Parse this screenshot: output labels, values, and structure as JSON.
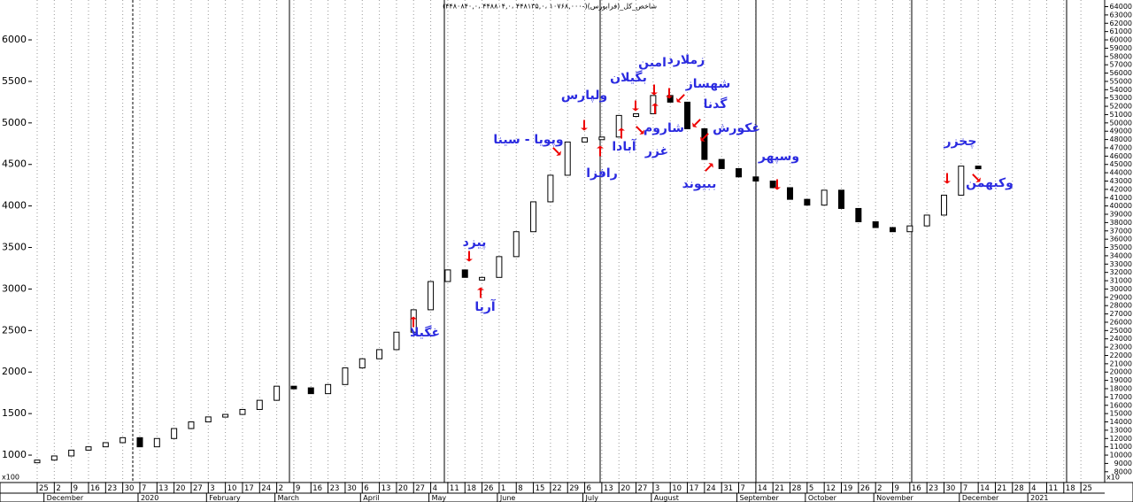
{
  "chart_data": {
    "type": "line",
    "title": "شاخص_کل_(فرابورس)(-۱۰۷۶۸,۰۰۰ ،۴۴۸۱۳۵,۰ ،۴۴۸۸۰۴,۰ ،۴۴۸۰۸۴۰,۰)",
    "ylabel": "x100",
    "y2label": "x10",
    "categories": [
      "25",
      "2",
      "9",
      "16",
      "23",
      "30",
      "7",
      "13",
      "20",
      "27",
      "3",
      "10",
      "17",
      "24",
      "2",
      "9",
      "16",
      "23",
      "30",
      "6",
      "13",
      "20",
      "27",
      "4",
      "11",
      "18",
      "26",
      "1",
      "8",
      "15",
      "22",
      "29",
      "6",
      "13",
      "20",
      "27",
      "3",
      "10",
      "17",
      "24",
      "31",
      "7",
      "14",
      "21",
      "28",
      "5",
      "12",
      "19",
      "26",
      "2",
      "9",
      "16",
      "23",
      "30",
      "7",
      "14",
      "21",
      "28",
      "4",
      "11",
      "18",
      "25"
    ],
    "month_labels": [
      "December",
      "2020",
      "February",
      "March",
      "April",
      "May",
      "June",
      "July",
      "August",
      "September",
      "October",
      "November",
      "December",
      "2021"
    ],
    "series": [
      {
        "name": "شاخص کل",
        "color": "#000000",
        "values": [
          940,
          990,
          1060,
          1100,
          1150,
          1210,
          1100,
          1200,
          1320,
          1400,
          1460,
          1490,
          1550,
          1660,
          1830,
          1810,
          1740,
          1850,
          2050,
          2160,
          2270,
          2480,
          2750,
          3090,
          3230,
          3140,
          3140,
          3390,
          3690,
          4050,
          4370,
          4770,
          4820,
          4830,
          5090,
          5110,
          5330,
          5250,
          4930,
          4560,
          4450,
          4350,
          4300,
          4220,
          4080,
          4010,
          4190,
          3970,
          3810,
          3740,
          3690,
          3760,
          3890,
          4130,
          4480,
          4450,
          null,
          null,
          null,
          null,
          null,
          null
        ]
      }
    ],
    "ylim": [
      670,
      6480
    ],
    "yticks": [
      1000,
      1500,
      2000,
      2500,
      3000,
      3500,
      4000,
      4500,
      5000,
      5500,
      6000
    ],
    "y2lim": [
      6700,
      64800
    ],
    "y2ticks": [
      8000,
      9000,
      10000,
      11000,
      12000,
      13000,
      14000,
      15000,
      16000,
      17000,
      18000,
      19000,
      20000,
      21000,
      22000,
      23000,
      24000,
      25000,
      26000,
      27000,
      28000,
      29000,
      30000,
      31000,
      32000,
      33000,
      34000,
      35000,
      36000,
      37000,
      38000,
      39000,
      40000,
      41000,
      42000,
      43000,
      44000,
      45000,
      46000,
      47000,
      48000,
      49000,
      50000,
      51000,
      52000,
      53000,
      54000,
      55000,
      56000,
      57000,
      58000,
      59000,
      60000,
      61000,
      62000,
      63000,
      64000
    ],
    "annotations": [
      "غگیلا",
      "پیزد",
      "آریا",
      "وپویا - سینا",
      "ولپارس",
      "بگیلان",
      "امین",
      "زملارد",
      "شهساز",
      "گدنا",
      "شاروم",
      "آبادا",
      "غزر",
      "رافزا",
      "غکورش",
      "ببیوند",
      "وسپهر",
      "چخزر",
      "وکبهمن"
    ],
    "grid": true
  }
}
